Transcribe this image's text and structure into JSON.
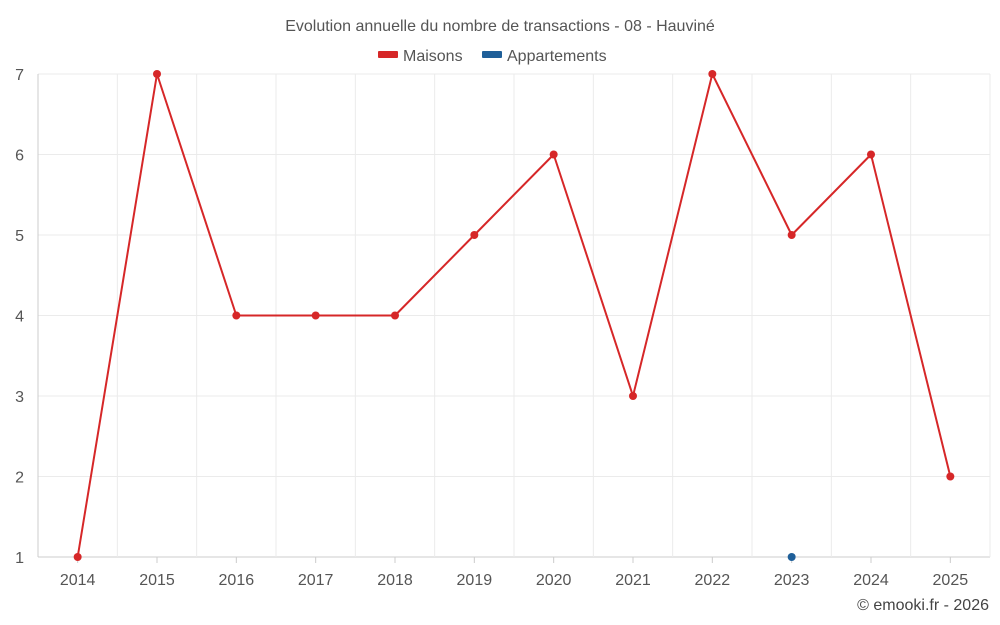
{
  "chart_data": {
    "type": "line",
    "title": "Evolution annuelle du nombre de transactions - 08 - Hauviné",
    "categories": [
      "2014",
      "2015",
      "2016",
      "2017",
      "2018",
      "2019",
      "2020",
      "2021",
      "2022",
      "2023",
      "2024",
      "2025"
    ],
    "ylim": [
      1,
      7
    ],
    "yticks": [
      1,
      2,
      3,
      4,
      5,
      6,
      7
    ],
    "grid": true,
    "legend_position": "top-center",
    "series": [
      {
        "name": "Maisons",
        "color": "#d62728",
        "values": [
          1,
          7,
          4,
          4,
          4,
          5,
          6,
          3,
          7,
          5,
          6,
          2
        ]
      },
      {
        "name": "Appartements",
        "color": "#1f5f99",
        "values": [
          null,
          null,
          null,
          null,
          null,
          null,
          null,
          null,
          null,
          1,
          null,
          null
        ]
      }
    ],
    "xlabel": "",
    "ylabel": ""
  },
  "credit": "© emooki.fr - 2026"
}
